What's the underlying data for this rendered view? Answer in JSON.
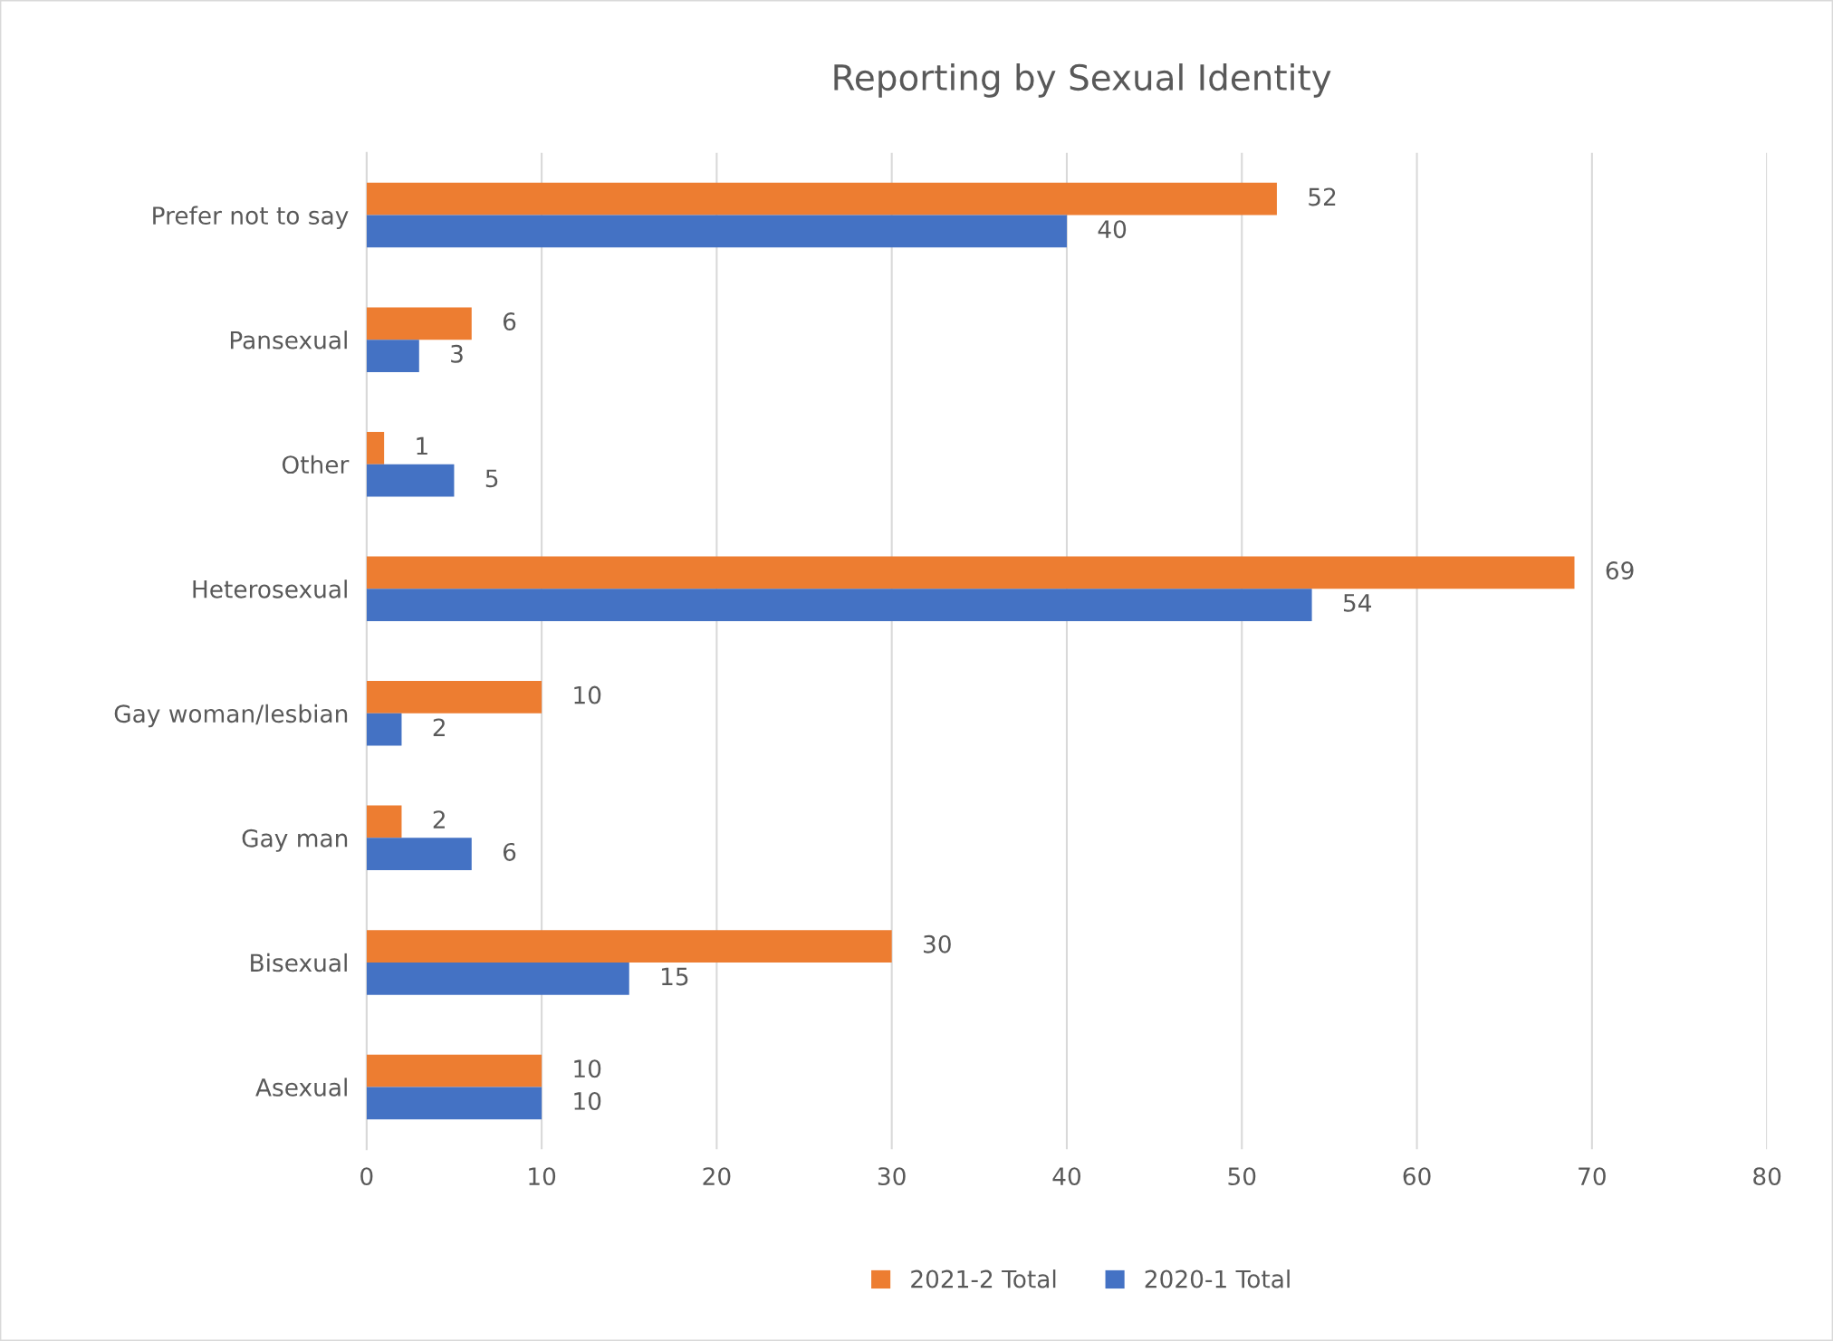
{
  "chart_data": {
    "type": "bar",
    "orientation": "horizontal",
    "title": "Reporting by Sexual Identity",
    "categories": [
      "Prefer not to say",
      "Pansexual",
      "Other",
      "Heterosexual",
      "Gay woman/lesbian",
      "Gay man",
      "Bisexual",
      "Asexual"
    ],
    "series": [
      {
        "name": "2021-2 Total",
        "color": "#ed7d31",
        "values": [
          52,
          6,
          1,
          69,
          10,
          2,
          30,
          10
        ]
      },
      {
        "name": "2020-1 Total",
        "color": "#4472c4",
        "values": [
          40,
          3,
          5,
          54,
          2,
          6,
          15,
          10
        ]
      }
    ],
    "xlim": [
      0,
      80
    ],
    "xticks": [
      0,
      10,
      20,
      30,
      40,
      50,
      60,
      70,
      80
    ],
    "grid": "x",
    "legend": "bottom",
    "data_labels": true
  }
}
